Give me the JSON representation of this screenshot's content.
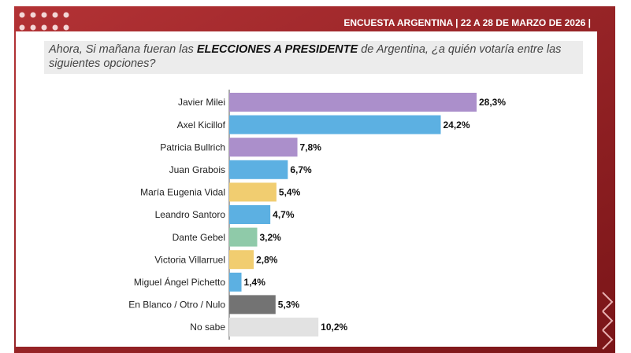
{
  "chart_data": {
    "type": "bar",
    "orientation": "horizontal",
    "header": "ENCUESTA ARGENTINA | 22 A 28 DE MARZO DE 2026 |",
    "question": [
      "Ahora, Si mañana fueran las ",
      "ELECCIONES A PRESIDENTE",
      " de Argentina, ¿a quién votaría entre las siguientes opciones?"
    ],
    "categories": [
      "Javier Milei",
      "Axel Kicillof",
      "Patricia Bullrich",
      "Juan Grabois",
      "María Eugenia Vidal",
      "Leandro Santoro",
      "Dante Gebel",
      "Victoria Villarruel",
      "Miguel Ángel Pichetto",
      "En Blanco / Otro / Nulo",
      "No sabe"
    ],
    "values": [
      28.3,
      24.2,
      7.8,
      6.7,
      5.4,
      4.7,
      3.2,
      2.8,
      1.4,
      5.3,
      10.2
    ],
    "value_labels": [
      "28,3%",
      "24,2%",
      "7,8%",
      "6,7%",
      "5,4%",
      "4,7%",
      "3,2%",
      "2,8%",
      "1,4%",
      "5,3%",
      "10,2%"
    ],
    "colors": [
      "#ab8fcb",
      "#5cb0e2",
      "#ab8fcb",
      "#5cb0e2",
      "#f1cd70",
      "#5cb0e2",
      "#8fcaa9",
      "#f1cd70",
      "#5cb0e2",
      "#737373",
      "#e2e2e2"
    ]
  }
}
